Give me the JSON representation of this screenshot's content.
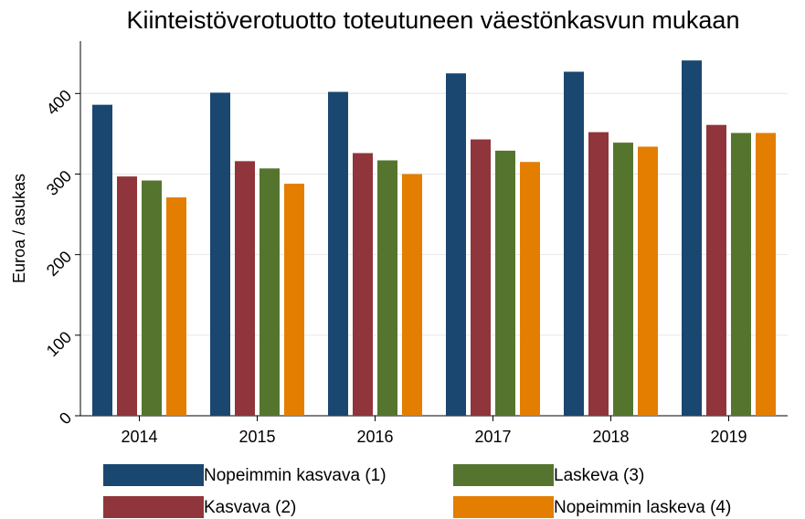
{
  "chart_data": {
    "type": "bar",
    "title": "Kiinteistöverotuotto toteutuneen väestönkasvun mukaan",
    "y_label": "Euroa / asukas",
    "categories": [
      "2014",
      "2015",
      "2016",
      "2017",
      "2018",
      "2019"
    ],
    "series": [
      {
        "name": "Nopeimmin kasvava (1)",
        "color": "#1a476f",
        "values": [
          386,
          401,
          402,
          425,
          427,
          441
        ]
      },
      {
        "name": "Kasvava (2)",
        "color": "#90353b",
        "values": [
          297,
          316,
          326,
          343,
          352,
          361
        ]
      },
      {
        "name": "Laskeva (3)",
        "color": "#55752f",
        "values": [
          292,
          307,
          317,
          329,
          339,
          351
        ]
      },
      {
        "name": "Nopeimmin laskeva (4)",
        "color": "#e37e00",
        "values": [
          271,
          288,
          300,
          315,
          334,
          351
        ]
      }
    ],
    "ylim": [
      0,
      465
    ],
    "yticks": [
      0,
      100,
      200,
      300,
      400
    ],
    "grid": true,
    "legend": "bottom"
  }
}
